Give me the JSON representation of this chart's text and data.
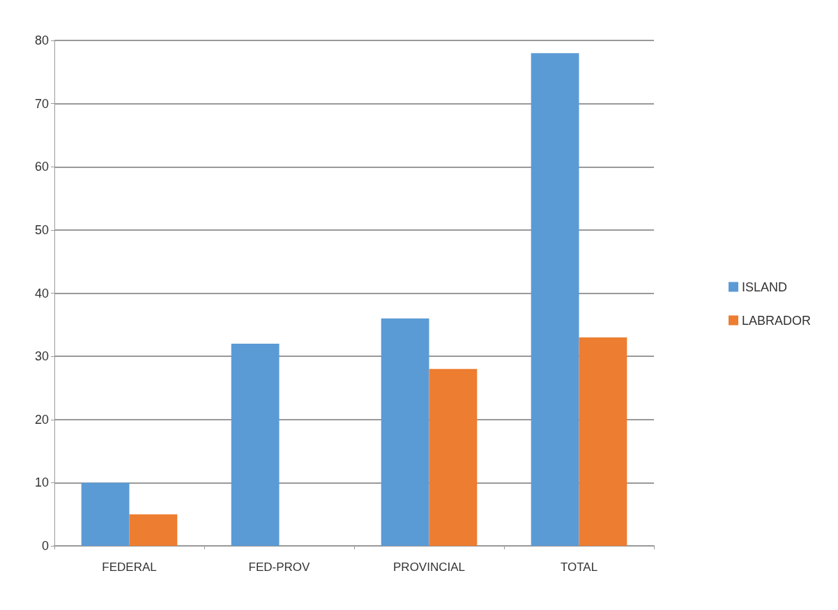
{
  "chart_data": {
    "type": "bar",
    "categories": [
      "FEDERAL",
      "FED-PROV",
      "PROVINCIAL",
      "TOTAL"
    ],
    "series": [
      {
        "name": "ISLAND",
        "color": "#5b9bd5",
        "values": [
          10,
          32,
          36,
          78
        ]
      },
      {
        "name": "LABRADOR",
        "color": "#ed7d31",
        "values": [
          5,
          0,
          28,
          33
        ]
      }
    ],
    "ylim": [
      0,
      80
    ],
    "yticks": [
      0,
      10,
      20,
      30,
      40,
      50,
      60,
      70,
      80
    ],
    "grid": "y",
    "legend": "right"
  }
}
